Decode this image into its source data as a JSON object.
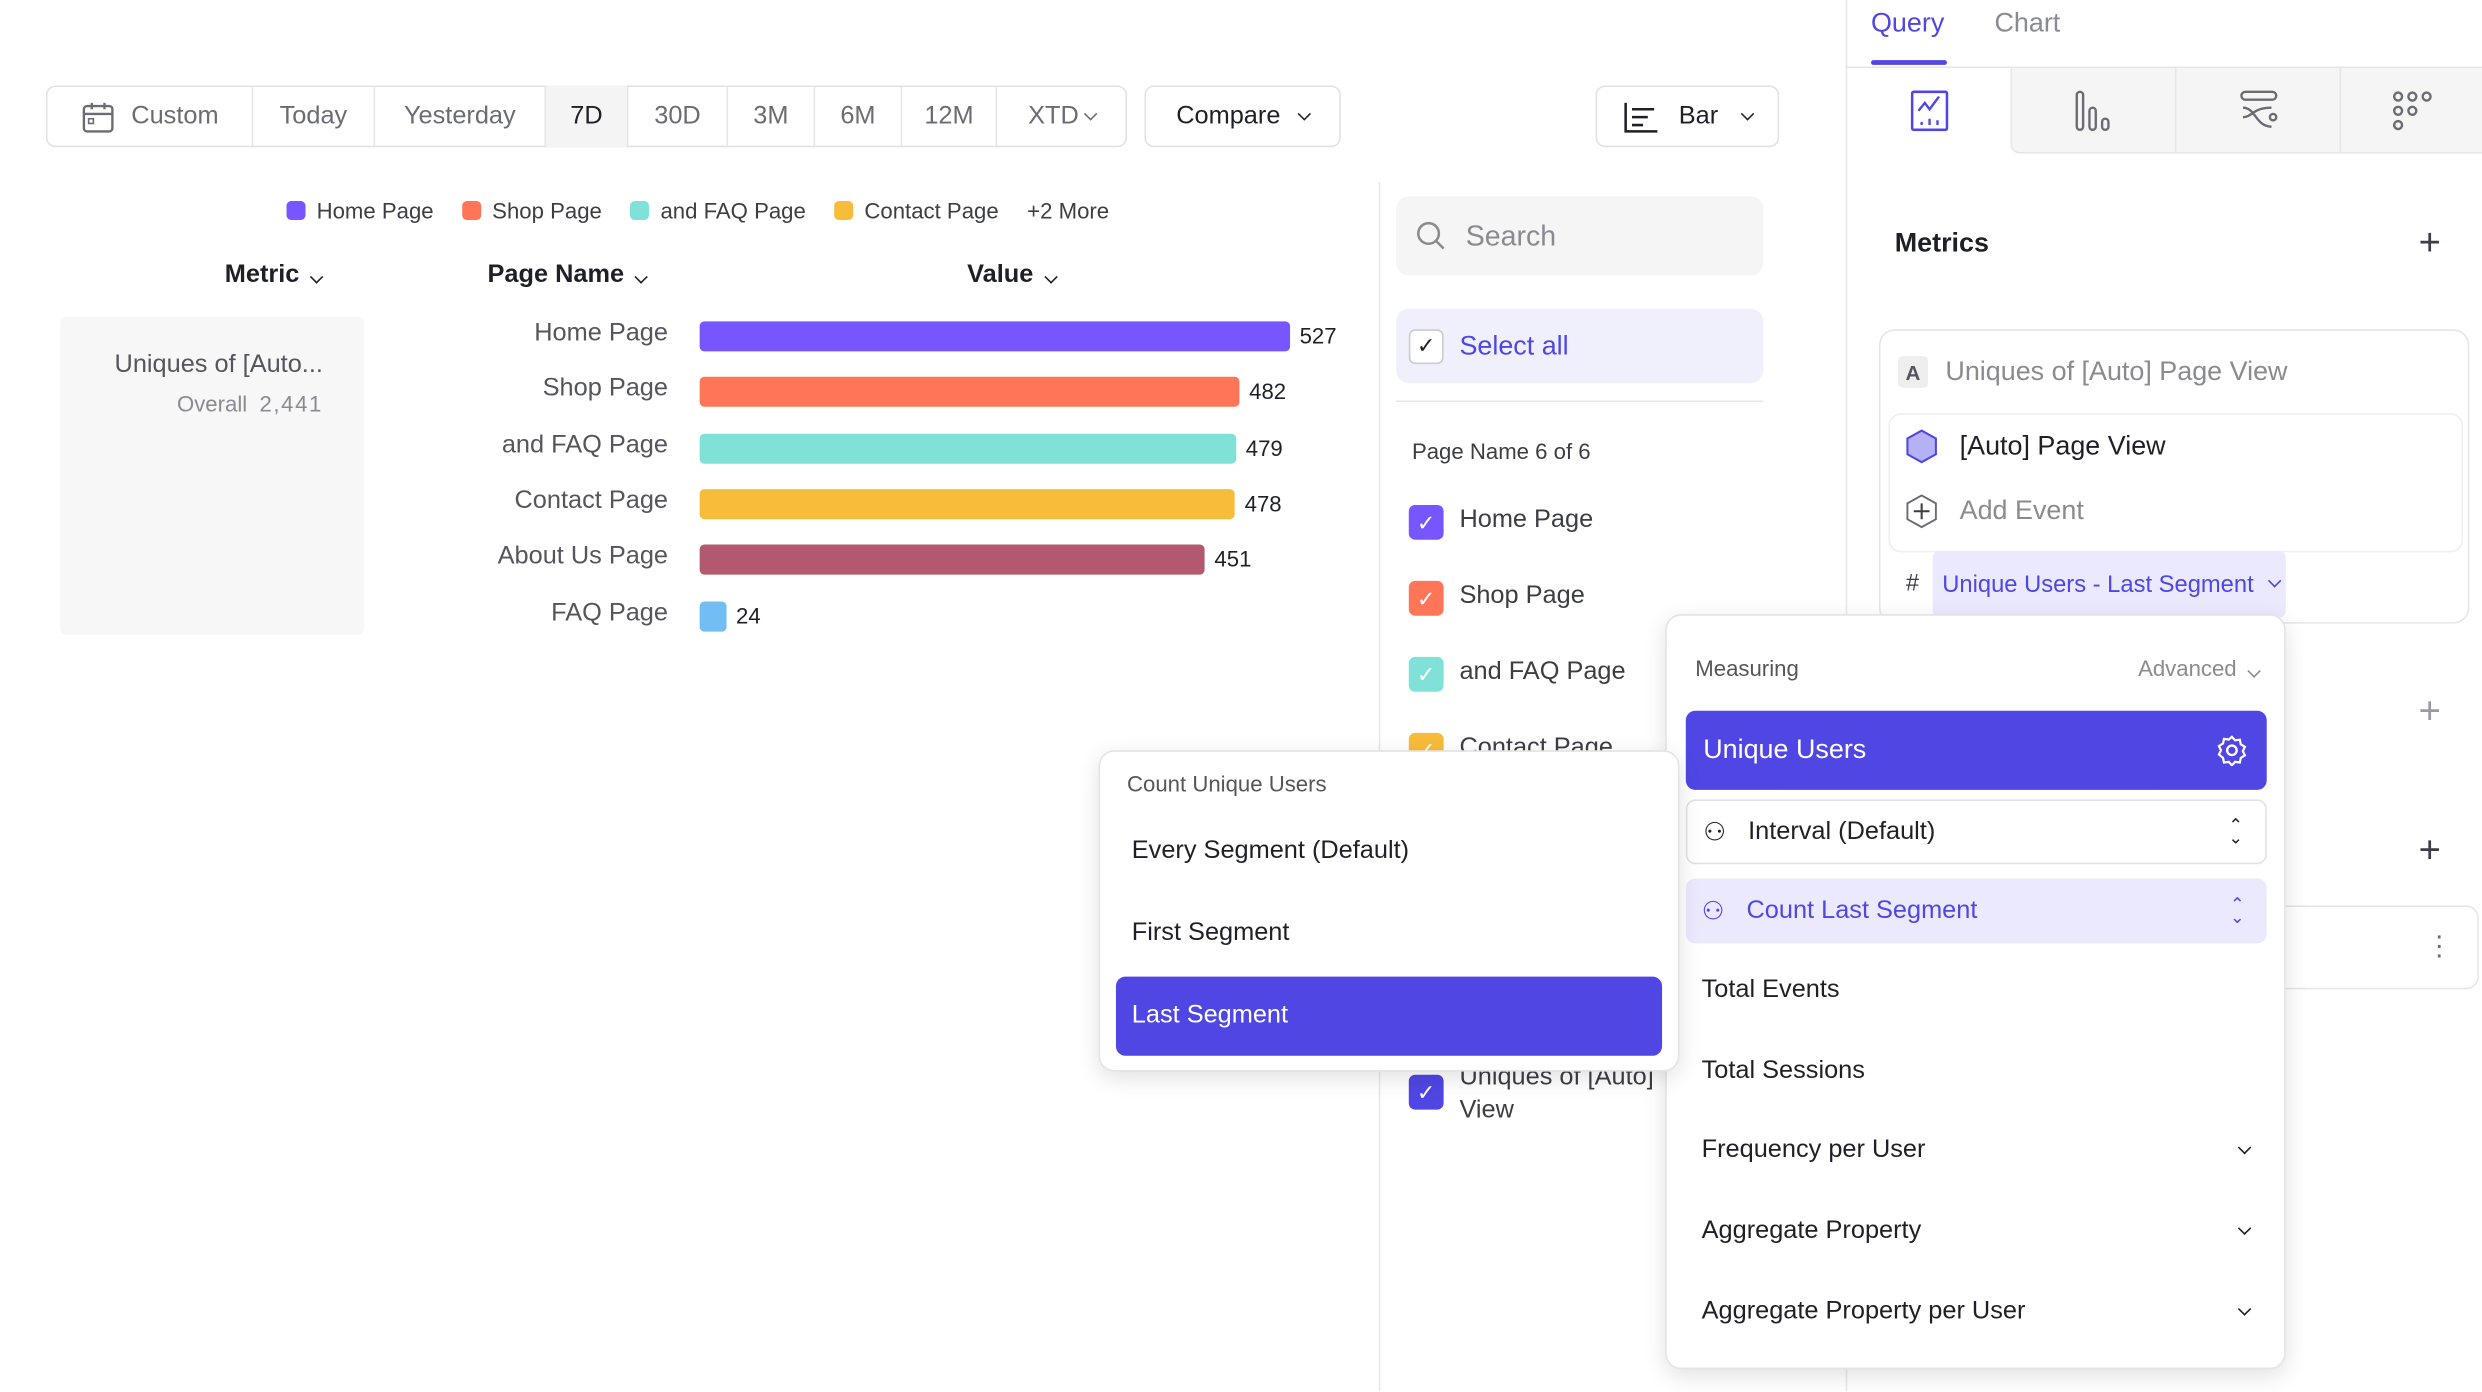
{
  "date_range": {
    "items": [
      "Custom",
      "Today",
      "Yesterday",
      "7D",
      "30D",
      "3M",
      "6M",
      "12M",
      "XTD"
    ],
    "selected": "7D"
  },
  "compare_label": "Compare",
  "chart_type_label": "Bar",
  "legend": {
    "items": [
      {
        "label": "Home Page",
        "color": "#7856ff"
      },
      {
        "label": "Shop Page",
        "color": "#ff7557"
      },
      {
        "label": "and FAQ Page",
        "color": "#80e1d9"
      },
      {
        "label": "Contact Page",
        "color": "#f8bc3b"
      }
    ],
    "more": "+2 More"
  },
  "table_headers": {
    "metric": "Metric",
    "page_name": "Page Name",
    "value": "Value"
  },
  "metric_card": {
    "name": "Uniques of [Auto...",
    "overall_label": "Overall",
    "overall_value": "2,441"
  },
  "chart_data": {
    "type": "bar",
    "orientation": "horizontal",
    "categories": [
      "Home Page",
      "Shop Page",
      "and FAQ Page",
      "Contact Page",
      "About Us Page",
      "FAQ Page"
    ],
    "values": [
      527,
      482,
      479,
      478,
      451,
      24
    ],
    "colors": [
      "#7856ff",
      "#ff7557",
      "#80e1d9",
      "#f8bc3b",
      "#b2596e",
      "#72bef4"
    ],
    "xlim": [
      0,
      527
    ]
  },
  "filter": {
    "search_placeholder": "Search",
    "select_all": "Select all",
    "group_label": "Page Name 6 of 6",
    "items": [
      {
        "label": "Home Page",
        "color": "#7856ff"
      },
      {
        "label": "Shop Page",
        "color": "#ff7557"
      },
      {
        "label": "and FAQ Page",
        "color": "#80e1d9"
      },
      {
        "label": "Contact Page",
        "color": "#f8bc3b"
      }
    ],
    "metric_item": {
      "line1": "Uniques of [Auto]",
      "line2": "View",
      "color": "#5046e4"
    }
  },
  "right_panel": {
    "tabs": [
      "Query",
      "Chart"
    ],
    "active_tab": "Query",
    "view_icons": [
      "line-chart-icon",
      "bar-chart-icon",
      "flow-icon",
      "grid-dots-icon"
    ],
    "metrics_title": "Metrics",
    "metric": {
      "badge": "A",
      "title": "Uniques of [Auto] Page View",
      "event": "[Auto] Page View",
      "add_event": "Add Event",
      "hash": "#",
      "measure_chip": "Unique Users - Last Segment"
    }
  },
  "measuring_popup": {
    "title": "Measuring",
    "advanced": "Advanced",
    "selected": "Unique Users",
    "interval": "Interval (Default)",
    "count": "Count Last Segment",
    "options": [
      "Total Events",
      "Total Sessions"
    ],
    "expandable": [
      "Frequency per User",
      "Aggregate Property",
      "Aggregate Property per User"
    ]
  },
  "count_popup": {
    "title": "Count Unique Users",
    "options": [
      "Every Segment (Default)",
      "First Segment",
      "Last Segment"
    ],
    "selected": "Last Segment"
  },
  "accent": "#5046e4"
}
